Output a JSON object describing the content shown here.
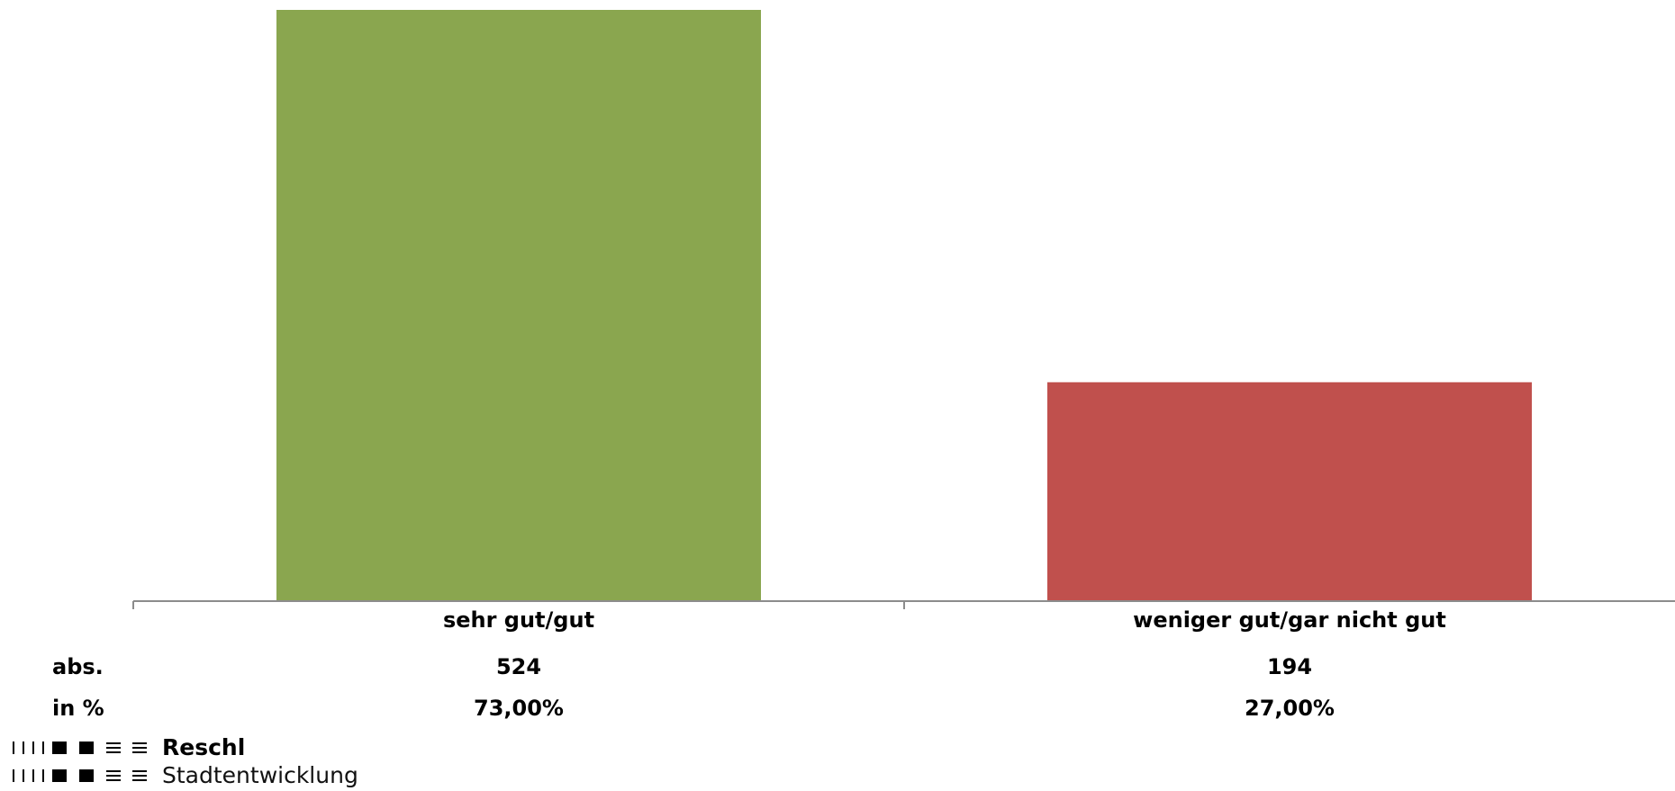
{
  "chart_data": {
    "type": "bar",
    "categories": [
      "sehr gut/gut",
      "weniger gut/gar nicht gut"
    ],
    "values": [
      524,
      194
    ],
    "percent_labels": [
      "73,00%",
      "27,00%"
    ],
    "colors": [
      "#8aa64f",
      "#c0504d"
    ],
    "ylim": [
      0,
      524
    ],
    "grid": false,
    "legend": "none"
  },
  "table": {
    "abs_label": "abs.",
    "pct_label": "in %",
    "abs_values": [
      "524",
      "194"
    ],
    "pct_values": [
      "73,00%",
      "27,00%"
    ]
  },
  "logo": {
    "name": "Reschl",
    "subtitle": "Stadtentwicklung",
    "icon": "reschl-logo-marks"
  }
}
